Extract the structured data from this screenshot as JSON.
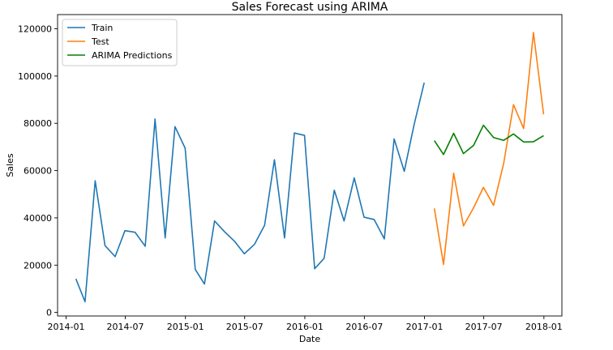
{
  "chart_data": {
    "type": "line",
    "title": "Sales Forecast using ARIMA",
    "xlabel": "Date",
    "ylabel": "Sales",
    "xlim": [
      "2013-12-06",
      "2018-02-25"
    ],
    "ylim": [
      -1500,
      126000
    ],
    "x_ticks": [
      {
        "date": "2014-01-01",
        "label": "2014-01"
      },
      {
        "date": "2014-07-01",
        "label": "2014-07"
      },
      {
        "date": "2015-01-01",
        "label": "2015-01"
      },
      {
        "date": "2015-07-01",
        "label": "2015-07"
      },
      {
        "date": "2016-01-01",
        "label": "2016-01"
      },
      {
        "date": "2016-07-01",
        "label": "2016-07"
      },
      {
        "date": "2017-01-01",
        "label": "2017-01"
      },
      {
        "date": "2017-07-01",
        "label": "2017-07"
      },
      {
        "date": "2018-01-01",
        "label": "2018-01"
      }
    ],
    "y_ticks": [
      {
        "value": 0,
        "label": "0"
      },
      {
        "value": 20000,
        "label": "20000"
      },
      {
        "value": 40000,
        "label": "40000"
      },
      {
        "value": 60000,
        "label": "60000"
      },
      {
        "value": 80000,
        "label": "80000"
      },
      {
        "value": 100000,
        "label": "100000"
      },
      {
        "value": 120000,
        "label": "120000"
      }
    ],
    "grid": false,
    "legend_position": "top-left",
    "series": [
      {
        "name": "Train",
        "color": "#1f77b4",
        "points": [
          [
            "2014-01-31",
            14200
          ],
          [
            "2014-02-28",
            4500
          ],
          [
            "2014-03-31",
            55700
          ],
          [
            "2014-04-30",
            28300
          ],
          [
            "2014-05-31",
            23600
          ],
          [
            "2014-06-30",
            34600
          ],
          [
            "2014-07-31",
            33900
          ],
          [
            "2014-08-31",
            28000
          ],
          [
            "2014-09-30",
            81800
          ],
          [
            "2014-10-31",
            31500
          ],
          [
            "2014-11-30",
            78600
          ],
          [
            "2014-12-31",
            69500
          ],
          [
            "2015-01-31",
            18200
          ],
          [
            "2015-02-28",
            12000
          ],
          [
            "2015-03-31",
            38700
          ],
          [
            "2015-04-30",
            34200
          ],
          [
            "2015-05-31",
            30100
          ],
          [
            "2015-06-30",
            24800
          ],
          [
            "2015-07-31",
            28800
          ],
          [
            "2015-08-31",
            36900
          ],
          [
            "2015-09-30",
            64600
          ],
          [
            "2015-10-31",
            31500
          ],
          [
            "2015-11-30",
            75900
          ],
          [
            "2015-12-31",
            74900
          ],
          [
            "2016-01-31",
            18500
          ],
          [
            "2016-02-29",
            22900
          ],
          [
            "2016-03-31",
            51700
          ],
          [
            "2016-04-30",
            38700
          ],
          [
            "2016-05-31",
            56900
          ],
          [
            "2016-06-30",
            40300
          ],
          [
            "2016-07-31",
            39300
          ],
          [
            "2016-08-31",
            31100
          ],
          [
            "2016-09-30",
            73400
          ],
          [
            "2016-10-31",
            59700
          ],
          [
            "2016-11-30",
            79400
          ],
          [
            "2016-12-31",
            97200
          ]
        ]
      },
      {
        "name": "Test",
        "color": "#ff7f0e",
        "points": [
          [
            "2017-01-31",
            44000
          ],
          [
            "2017-02-28",
            20300
          ],
          [
            "2017-03-31",
            58900
          ],
          [
            "2017-04-30",
            36600
          ],
          [
            "2017-05-31",
            44300
          ],
          [
            "2017-06-30",
            52900
          ],
          [
            "2017-07-31",
            45300
          ],
          [
            "2017-08-31",
            63100
          ],
          [
            "2017-09-30",
            87900
          ],
          [
            "2017-10-31",
            77800
          ],
          [
            "2017-11-30",
            118400
          ],
          [
            "2017-12-31",
            83800
          ]
        ]
      },
      {
        "name": "ARIMA Predictions",
        "color": "#008000",
        "points": [
          [
            "2017-01-31",
            72700
          ],
          [
            "2017-02-28",
            66800
          ],
          [
            "2017-03-31",
            75800
          ],
          [
            "2017-04-30",
            67200
          ],
          [
            "2017-05-31",
            70700
          ],
          [
            "2017-06-30",
            79200
          ],
          [
            "2017-07-31",
            74000
          ],
          [
            "2017-08-31",
            72800
          ],
          [
            "2017-09-30",
            75500
          ],
          [
            "2017-10-31",
            72100
          ],
          [
            "2017-11-30",
            72200
          ],
          [
            "2017-12-31",
            74800
          ]
        ]
      }
    ]
  }
}
